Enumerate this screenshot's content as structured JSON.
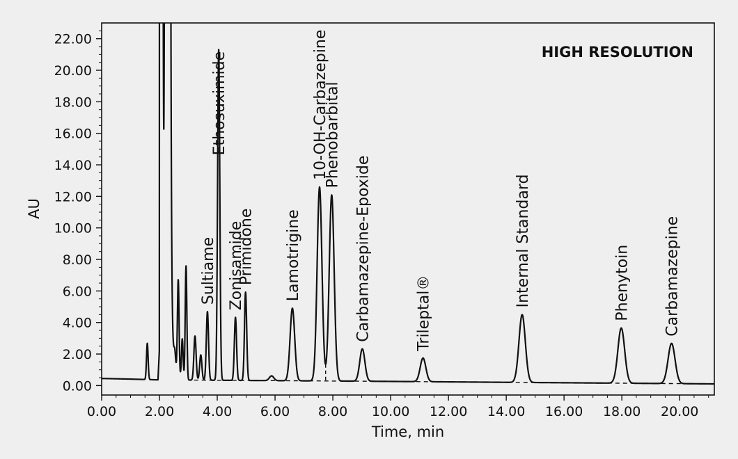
{
  "chart_data": {
    "type": "line",
    "title": "",
    "xlabel": "Time, min",
    "ylabel": "AU",
    "annotation": "HIGH RESOLUTION",
    "xlim": [
      0,
      21.2
    ],
    "ylim": [
      -0.6,
      23
    ],
    "x_ticks": [
      0,
      2,
      4,
      6,
      8,
      10,
      12,
      14,
      16,
      18,
      20
    ],
    "y_ticks": [
      0,
      2,
      4,
      6,
      8,
      10,
      12,
      14,
      16,
      18,
      20,
      22
    ],
    "x_tick_labels": [
      "0.00",
      "2.00",
      "4.00",
      "6.00",
      "8.00",
      "10.00",
      "12.00",
      "14.00",
      "16.00",
      "18.00",
      "20.00"
    ],
    "y_tick_labels": [
      "0.00",
      "2.00",
      "4.00",
      "6.00",
      "8.00",
      "10.00",
      "12.00",
      "14.00",
      "16.00",
      "18.00",
      "20.00",
      "22.00"
    ],
    "grid": false,
    "baseline_start": 0.45,
    "solvent_front": {
      "start": 2.0,
      "end": 2.38,
      "dip_time": 2.15,
      "dip_au": 15.8
    },
    "peaks": [
      {
        "name": "",
        "time": 1.58,
        "height": 2.3
      },
      {
        "name": "",
        "time": 2.53,
        "height": 0.9
      },
      {
        "name": "",
        "time": 2.65,
        "height": 6.0
      },
      {
        "name": "",
        "time": 2.79,
        "height": 2.5
      },
      {
        "name": "",
        "time": 2.92,
        "height": 7.2
      },
      {
        "name": "",
        "time": 3.23,
        "height": 2.8
      },
      {
        "name": "",
        "time": 3.43,
        "height": 1.6
      },
      {
        "name": "Sultiame",
        "time": 3.66,
        "height": 4.35
      },
      {
        "name": "Ethosuximide",
        "time": 4.05,
        "height": 21.0
      },
      {
        "name": "Zonisamide",
        "time": 4.63,
        "height": 4.0
      },
      {
        "name": "Primidone",
        "time": 4.98,
        "height": 5.6
      },
      {
        "name": "",
        "time": 5.88,
        "height": 0.3
      },
      {
        "name": "Lamotrigine",
        "time": 6.6,
        "height": 4.6
      },
      {
        "name": "10-OH-Carbazepine",
        "time": 7.54,
        "height": 12.3
      },
      {
        "name": "Phenobarbital",
        "time": 7.96,
        "height": 11.8
      },
      {
        "name": "Carbamazepine-Epoxide",
        "time": 9.02,
        "height": 2.05
      },
      {
        "name": "Trileptal®",
        "time": 11.12,
        "height": 1.5
      },
      {
        "name": "Internal Standard",
        "time": 14.55,
        "height": 4.3
      },
      {
        "name": "Phenytoin",
        "time": 17.98,
        "height": 3.5
      },
      {
        "name": "Carbamazepine",
        "time": 19.72,
        "height": 2.55
      }
    ]
  }
}
